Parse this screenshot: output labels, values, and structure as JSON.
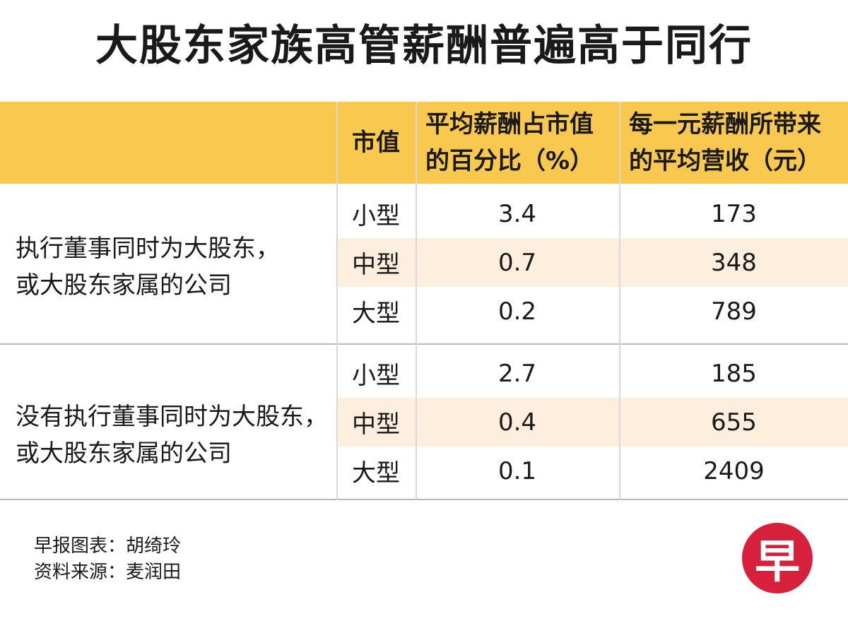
{
  "title": "大股东家族高管薪酬普遍高于同行",
  "header": {
    "col_size": "市值",
    "col_pct_line1": "平均薪酬占市值",
    "col_pct_line2": "的百分比（%）",
    "col_rev_line1": "每一元薪酬所带来",
    "col_rev_line2": "的平均营收（元）"
  },
  "groups": [
    {
      "label_line1": "执行董事同时为大股东，",
      "label_line2": "或大股东家属的公司",
      "rows": [
        {
          "size": "小型",
          "pct": "3.4",
          "rev": "173"
        },
        {
          "size": "中型",
          "pct": "0.7",
          "rev": "348"
        },
        {
          "size": "大型",
          "pct": "0.2",
          "rev": "789"
        }
      ]
    },
    {
      "label_line1": "没有执行董事同时为大股东，",
      "label_line2": "或大股东家属的公司",
      "rows": [
        {
          "size": "小型",
          "pct": "2.7",
          "rev": "185"
        },
        {
          "size": "中型",
          "pct": "0.4",
          "rev": "655"
        },
        {
          "size": "大型",
          "pct": "0.1",
          "rev": "2409"
        }
      ]
    }
  ],
  "footer": {
    "credit": "早报图表：胡绮玲",
    "source": "资料来源：麦润田"
  },
  "logo": {
    "char": "早",
    "color": "#d7203b"
  },
  "colors": {
    "header_bg": "#f9c84f",
    "row_shade": "#fdeedd"
  },
  "chart_data": {
    "type": "table",
    "title": "大股东家族高管薪酬普遍高于同行",
    "columns": [
      "市值",
      "平均薪酬占市值的百分比（%）",
      "每一元薪酬所带来的平均营收（元）"
    ],
    "groups": [
      {
        "name": "执行董事同时为大股东，或大股东家属的公司",
        "rows": [
          [
            "小型",
            3.4,
            173
          ],
          [
            "中型",
            0.7,
            348
          ],
          [
            "大型",
            0.2,
            789
          ]
        ]
      },
      {
        "name": "没有执行董事同时为大股东，或大股东家属的公司",
        "rows": [
          [
            "小型",
            2.7,
            185
          ],
          [
            "中型",
            0.4,
            655
          ],
          [
            "大型",
            0.1,
            2409
          ]
        ]
      }
    ]
  }
}
